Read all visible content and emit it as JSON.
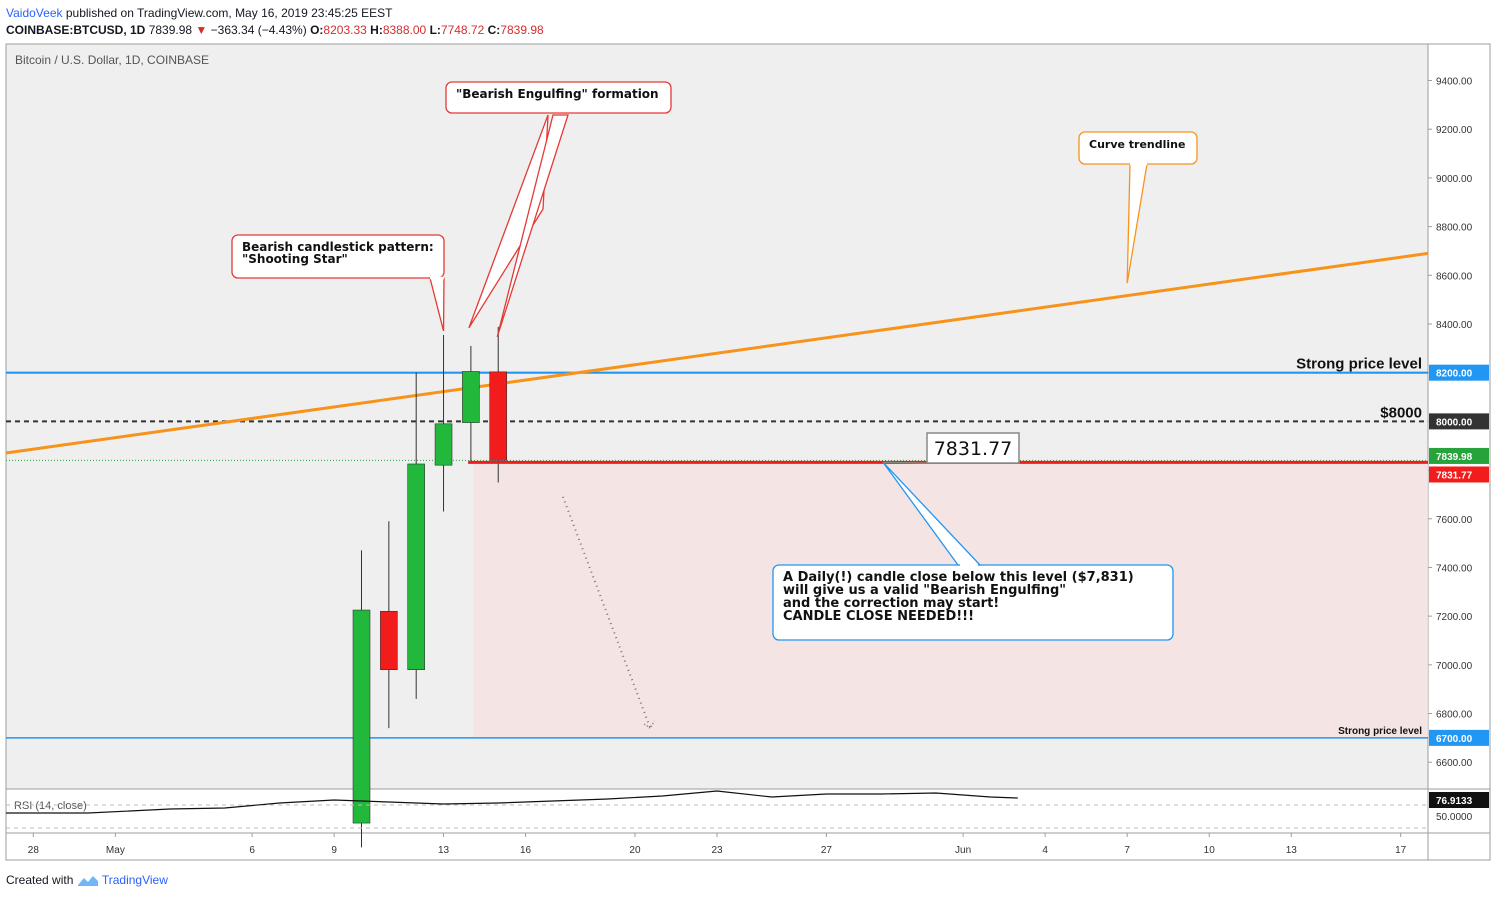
{
  "header": {
    "author": "VaidoVeek",
    "published": "published on TradingView.com, May 16, 2019 23:45:25 EEST",
    "symbol": "COINBASE:BTCUSD, 1D",
    "last": "7839.98",
    "change": "−363.34 (−4.43%)",
    "o_label": "O:",
    "o": "8203.33",
    "h_label": "H:",
    "h": "8388.00",
    "l_label": "L:",
    "l": "7748.72",
    "c_label": "C:",
    "c": "7839.98"
  },
  "footer": {
    "created": "Created with",
    "brand": "TradingView"
  },
  "chart_data": {
    "type": "candlestick",
    "title": "Bitcoin / U.S. Dollar, 1D, COINBASE",
    "x_axis_labels": [
      "28",
      "May",
      "6",
      "9",
      "13",
      "16",
      "20",
      "23",
      "27",
      "Jun",
      "4",
      "7",
      "10",
      "13",
      "17"
    ],
    "x_label_dates": [
      "2019-04-28",
      "2019-05-01",
      "2019-05-06",
      "2019-05-09",
      "2019-05-13",
      "2019-05-16",
      "2019-05-20",
      "2019-05-23",
      "2019-05-27",
      "2019-06-01",
      "2019-06-04",
      "2019-06-07",
      "2019-06-10",
      "2019-06-13",
      "2019-06-17"
    ],
    "x_range": [
      "2019-04-27",
      "2019-06-18"
    ],
    "price_axis": {
      "ticks": [
        6600,
        6800,
        7000,
        7200,
        7400,
        7600,
        7800,
        8000,
        8200,
        8400,
        8600,
        8800,
        9000,
        9200,
        9400
      ],
      "tick_labels": [
        "6600.00",
        "6800.00",
        "7000.00",
        "7200.00",
        "7400.00",
        "7600.00",
        "7800.00",
        "8000.00",
        "8200.00",
        "8400.00",
        "8600.00",
        "8800.00",
        "9000.00",
        "9200.00",
        "9400.00"
      ],
      "ylim": [
        6490,
        9550
      ]
    },
    "candles": [
      {
        "date": "2019-05-10",
        "open": 6350,
        "high": 7470,
        "low": 6250,
        "close": 7225
      },
      {
        "date": "2019-05-11",
        "open": 7220,
        "high": 7590,
        "low": 6740,
        "close": 6980
      },
      {
        "date": "2019-05-12",
        "open": 6980,
        "high": 8200,
        "low": 6860,
        "close": 7825
      },
      {
        "date": "2019-05-13",
        "open": 7820,
        "high": 8355,
        "low": 7630,
        "close": 7990
      },
      {
        "date": "2019-05-14",
        "open": 7995,
        "high": 8310,
        "low": 7830,
        "close": 8205
      },
      {
        "date": "2019-05-15",
        "open": 8203.33,
        "high": 8388.0,
        "low": 7748.72,
        "close": 7839.98
      }
    ],
    "levels": [
      {
        "value": 8200,
        "label": "Strong price level",
        "tag": "8200.00",
        "color": "#2196f3"
      },
      {
        "value": 8000,
        "label": "$8000",
        "tag": "8000.00",
        "color": "#333333",
        "style": "dashed"
      },
      {
        "value": 7831.77,
        "label": "",
        "tag": "7831.77",
        "color": "#f21c1c"
      },
      {
        "value": 6700,
        "label": "Strong price level",
        "tag": "6700.00",
        "color": "#2196f3"
      },
      {
        "value": 7839.98,
        "label": "",
        "tag": "7839.98",
        "color": "#26a33a",
        "style": "dotted"
      }
    ],
    "trendline": {
      "name": "Curve trendline",
      "color": "#f7931a",
      "points": [
        {
          "date": "2019-04-27",
          "value": 7870
        },
        {
          "date": "2019-06-18",
          "value": 8690
        }
      ]
    },
    "callouts": [
      {
        "lines": [
          "Bearish candlestick pattern:",
          "\"Shooting Star\""
        ],
        "color": "#e53935"
      },
      {
        "lines": [
          "\"Bearish Engulfing\" formation"
        ],
        "color": "#e53935"
      },
      {
        "lines": [
          "Curve trendline"
        ],
        "color": "#f7931a"
      },
      {
        "lines": [
          "A Daily(!) candle close below this level ($7,831)",
          "will give us a valid \"Bearish Engulfing\"",
          "and the correction may start!",
          "CANDLE CLOSE NEEDED!!!"
        ],
        "color": "#2196f3"
      }
    ],
    "price_label": "7831.77",
    "projection": {
      "from": {
        "date": "2019-05-17",
        "value": 7690
      },
      "to": {
        "date": "2019-05-21",
        "value": 6740
      }
    },
    "rsi": {
      "label": "RSI (14, close)",
      "value": "76.9133",
      "tick": "50.0000",
      "tick_value": 50
    }
  }
}
